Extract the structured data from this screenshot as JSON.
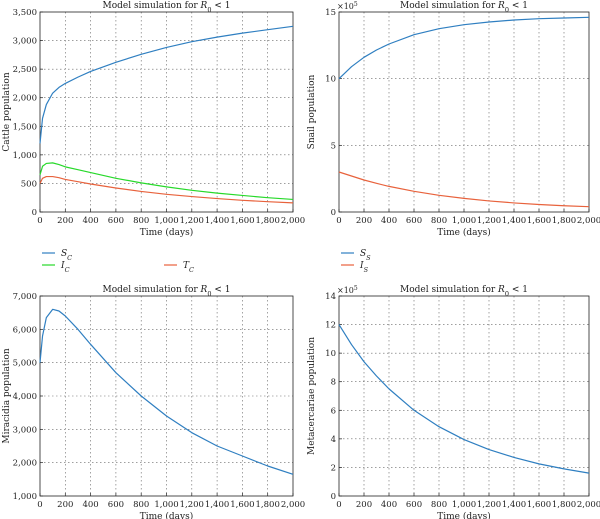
{
  "chart_data": [
    {
      "type": "line",
      "title": "Model simulation for R0 < 1",
      "xlabel": "Time (days)",
      "ylabel": "Cattle population",
      "xlim": [
        0,
        2000
      ],
      "ylim": [
        0,
        3500
      ],
      "xticks": [
        "0",
        "200",
        "400",
        "600",
        "800",
        "1,000",
        "1,200",
        "1,400",
        "1,600",
        "1,800",
        "2,000"
      ],
      "yticks": [
        "0",
        "500",
        "1,000",
        "1,500",
        "2,000",
        "2,500",
        "3,000",
        "3,500"
      ],
      "grid": true,
      "legend": "below",
      "x": [
        0,
        20,
        50,
        100,
        150,
        200,
        300,
        400,
        600,
        800,
        1000,
        1200,
        1400,
        1600,
        1800,
        2000
      ],
      "series": [
        {
          "name": "S_C",
          "color": "#2f7fc1",
          "values": [
            1200,
            1640,
            1880,
            2080,
            2180,
            2250,
            2360,
            2460,
            2620,
            2760,
            2880,
            2980,
            3060,
            3130,
            3190,
            3250
          ]
        },
        {
          "name": "I_C",
          "color": "#27d92a",
          "values": [
            650,
            800,
            850,
            860,
            830,
            790,
            740,
            690,
            590,
            510,
            440,
            380,
            330,
            290,
            250,
            220
          ]
        },
        {
          "name": "T_C",
          "color": "#e8623c",
          "values": [
            500,
            590,
            620,
            620,
            600,
            570,
            530,
            490,
            420,
            360,
            310,
            270,
            235,
            205,
            180,
            160
          ]
        }
      ]
    },
    {
      "type": "line",
      "title": "Model simulation for R0 < 1",
      "xlabel": "Time (days)",
      "ylabel": "Snail population",
      "multiplier": "×10",
      "multiplier_exp": "5",
      "xlim": [
        0,
        2000
      ],
      "ylim": [
        0,
        15
      ],
      "xticks": [
        "0",
        "200",
        "400",
        "600",
        "800",
        "1,000",
        "1,200",
        "1,400",
        "1,600",
        "1,800",
        "2,000"
      ],
      "yticks": [
        "0",
        "5",
        "10",
        "15"
      ],
      "grid": true,
      "legend": "below",
      "x": [
        0,
        100,
        200,
        300,
        400,
        600,
        800,
        1000,
        1200,
        1400,
        1600,
        1800,
        2000
      ],
      "series": [
        {
          "name": "S_S",
          "color": "#2f7fc1",
          "values": [
            10,
            10.9,
            11.6,
            12.15,
            12.6,
            13.3,
            13.75,
            14.05,
            14.25,
            14.4,
            14.5,
            14.55,
            14.6
          ]
        },
        {
          "name": "I_S",
          "color": "#e8623c",
          "values": [
            3,
            2.7,
            2.4,
            2.15,
            1.92,
            1.55,
            1.25,
            1.02,
            0.83,
            0.68,
            0.56,
            0.47,
            0.4
          ]
        }
      ]
    },
    {
      "type": "line",
      "title": "Model simulation for R0 < 1",
      "xlabel": "Time (days)",
      "ylabel": "Miracidia population",
      "xlim": [
        0,
        2000
      ],
      "ylim": [
        1000,
        7000
      ],
      "xticks": [
        "0",
        "200",
        "400",
        "600",
        "800",
        "1,000",
        "1,200",
        "1,400",
        "1,600",
        "1,800",
        "2,000"
      ],
      "yticks": [
        "1,000",
        "2,000",
        "3,000",
        "4,000",
        "5,000",
        "6,000",
        "7,000"
      ],
      "grid": true,
      "x": [
        0,
        20,
        50,
        100,
        150,
        200,
        300,
        400,
        600,
        800,
        1000,
        1200,
        1400,
        1600,
        1800,
        2000
      ],
      "series": [
        {
          "name": "",
          "color": "#2f7fc1",
          "values": [
            5000,
            5800,
            6350,
            6600,
            6550,
            6400,
            6000,
            5550,
            4700,
            4000,
            3400,
            2900,
            2500,
            2200,
            1900,
            1650
          ]
        }
      ]
    },
    {
      "type": "line",
      "title": "Model simulation for R0 < 1",
      "xlabel": "Time (days)",
      "ylabel": "Metacercariae population",
      "multiplier": "×10",
      "multiplier_exp": "5",
      "xlim": [
        0,
        2000
      ],
      "ylim": [
        0,
        14
      ],
      "xticks": [
        "0",
        "200",
        "400",
        "600",
        "800",
        "1,000",
        "1,200",
        "1,400",
        "1,600",
        "1,800",
        "2,000"
      ],
      "yticks": [
        "0",
        "2",
        "4",
        "6",
        "8",
        "10",
        "12",
        "14"
      ],
      "grid": true,
      "x": [
        0,
        100,
        200,
        300,
        400,
        600,
        800,
        1000,
        1200,
        1400,
        1600,
        1800,
        2000
      ],
      "series": [
        {
          "name": "",
          "color": "#2f7fc1",
          "values": [
            12,
            10.6,
            9.4,
            8.4,
            7.5,
            6.0,
            4.85,
            3.95,
            3.25,
            2.7,
            2.25,
            1.9,
            1.6
          ]
        }
      ]
    }
  ]
}
